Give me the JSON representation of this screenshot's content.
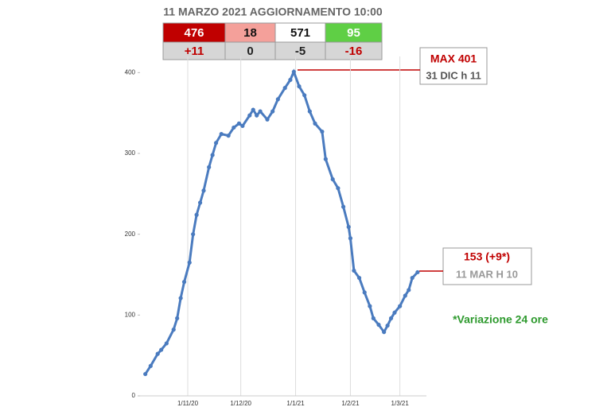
{
  "chart_data": {
    "type": "line",
    "subtitle": "11 MARZO 2021 AGGIORNAMENTO 10:00",
    "color": "#4a7bbf",
    "x": [
      "2020-10-08",
      "2020-10-11",
      "2020-10-15",
      "2020-10-17",
      "2020-10-20",
      "2020-10-24",
      "2020-10-26",
      "2020-10-28",
      "2020-10-30",
      "2020-11-02",
      "2020-11-04",
      "2020-11-06",
      "2020-11-08",
      "2020-11-10",
      "2020-11-13",
      "2020-11-15",
      "2020-11-17",
      "2020-11-20",
      "2020-11-24",
      "2020-11-27",
      "2020-11-30",
      "2020-12-02",
      "2020-12-06",
      "2020-12-08",
      "2020-12-10",
      "2020-12-12",
      "2020-12-16",
      "2020-12-19",
      "2020-12-22",
      "2020-12-26",
      "2020-12-29",
      "2020-12-31",
      "2021-01-03",
      "2021-01-06",
      "2021-01-09",
      "2021-01-12",
      "2021-01-16",
      "2021-01-18",
      "2021-01-22",
      "2021-01-25",
      "2021-01-28",
      "2021-01-31",
      "2021-02-01",
      "2021-02-03",
      "2021-02-06",
      "2021-02-09",
      "2021-02-12",
      "2021-02-14",
      "2021-02-17",
      "2021-02-20",
      "2021-02-22",
      "2021-02-24",
      "2021-02-26",
      "2021-03-01",
      "2021-03-04",
      "2021-03-06",
      "2021-03-08",
      "2021-03-11"
    ],
    "values": [
      27,
      37,
      52,
      57,
      65,
      82,
      96,
      121,
      141,
      165,
      200,
      224,
      239,
      254,
      283,
      298,
      313,
      324,
      322,
      332,
      337,
      334,
      347,
      354,
      347,
      352,
      342,
      352,
      367,
      381,
      391,
      401,
      383,
      372,
      352,
      337,
      327,
      293,
      268,
      257,
      234,
      209,
      195,
      155,
      146,
      128,
      111,
      96,
      88,
      79,
      87,
      96,
      103,
      111,
      124,
      131,
      146,
      153
    ],
    "xlim": [
      "2020-10-05",
      "2021-03-16"
    ],
    "xticks": [
      {
        "value": "2020-11-01",
        "label": "1/11/20"
      },
      {
        "value": "2020-12-01",
        "label": "1/12/20"
      },
      {
        "value": "2021-01-01",
        "label": "1/1/21"
      },
      {
        "value": "2021-02-01",
        "label": "1/2/21"
      },
      {
        "value": "2021-03-01",
        "label": "1/3/21"
      }
    ],
    "ylim": [
      0,
      420
    ],
    "yticks": [
      0,
      100,
      200,
      300,
      400
    ],
    "grid": true,
    "annotations": [
      "MAX 401",
      "31 DIC h 11",
      "153 (+9*)",
      "11 MAR H 10",
      "*Variazione 24 ore"
    ]
  },
  "table": [
    [
      "476",
      "18",
      "571",
      "95"
    ],
    [
      "+11",
      "0",
      "-5",
      "-16"
    ]
  ]
}
